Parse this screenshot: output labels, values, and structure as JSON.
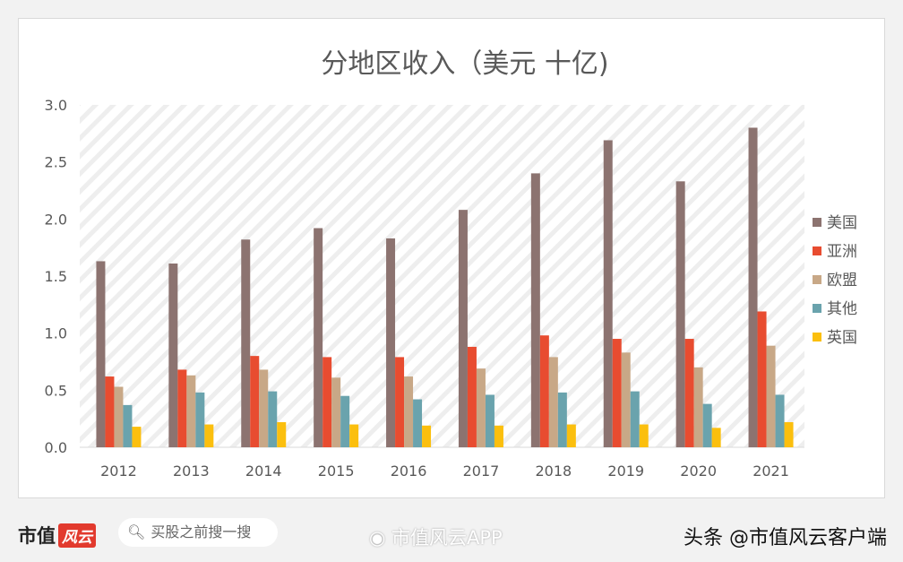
{
  "chart_data": {
    "type": "bar",
    "title": "分地区收入（美元 十亿)",
    "categories": [
      "2012",
      "2013",
      "2014",
      "2015",
      "2016",
      "2017",
      "2018",
      "2019",
      "2020",
      "2021"
    ],
    "series": [
      {
        "name": "美国",
        "color": "#8c7370",
        "values": [
          1.63,
          1.61,
          1.82,
          1.92,
          1.83,
          2.08,
          2.4,
          2.69,
          2.33,
          2.8
        ]
      },
      {
        "name": "亚洲",
        "color": "#e84c30",
        "values": [
          0.62,
          0.68,
          0.8,
          0.79,
          0.79,
          0.88,
          0.98,
          0.95,
          0.95,
          1.19
        ]
      },
      {
        "name": "欧盟",
        "color": "#c8a887",
        "values": [
          0.53,
          0.63,
          0.68,
          0.61,
          0.62,
          0.69,
          0.79,
          0.83,
          0.7,
          0.89
        ]
      },
      {
        "name": "其他",
        "color": "#6aa3ad",
        "values": [
          0.37,
          0.48,
          0.49,
          0.45,
          0.42,
          0.46,
          0.48,
          0.49,
          0.38,
          0.46
        ]
      },
      {
        "name": "英国",
        "color": "#fbbf0e",
        "values": [
          0.18,
          0.2,
          0.22,
          0.2,
          0.19,
          0.19,
          0.2,
          0.2,
          0.17,
          0.22
        ]
      }
    ],
    "yticks": [
      "0.0",
      "0.5",
      "1.0",
      "1.5",
      "2.0",
      "2.5",
      "3.0"
    ],
    "ylim": [
      0,
      3.0
    ],
    "grid": false,
    "legend": "right"
  },
  "watermark": "市值风云",
  "footer": {
    "logo_text": "市值",
    "logo_badge": "风云",
    "search_placeholder": "买股之前搜一搜",
    "weibo_text": "市值风云APP",
    "toutiao_text": "头条 @市值风云客户端"
  }
}
